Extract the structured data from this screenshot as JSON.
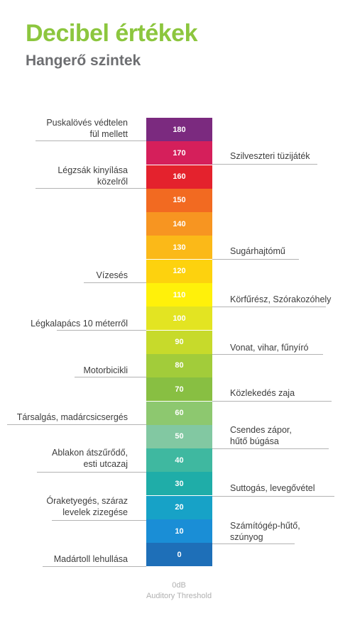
{
  "header": {
    "title": "Decibel értékek",
    "subtitle": "Hangerő szintek"
  },
  "scale": {
    "levels": [
      "180",
      "170",
      "160",
      "150",
      "140",
      "130",
      "120",
      "110",
      "100",
      "90",
      "80",
      "70",
      "60",
      "50",
      "40",
      "30",
      "20",
      "10",
      "0"
    ],
    "colors": [
      "#7b2a7f",
      "#d51f5b",
      "#e4222d",
      "#f26a21",
      "#f79521",
      "#fbb918",
      "#fdd20e",
      "#fff10a",
      "#e3e422",
      "#c7da2b",
      "#a2cc3a",
      "#88bf42",
      "#8dc86f",
      "#82c8a2",
      "#3fb8a0",
      "#1fada8",
      "#17a2c7",
      "#1a8ed6",
      "#1e6fb8"
    ]
  },
  "labels": {
    "left": [
      {
        "text": "Puskalövés védtelen\nfül mellett"
      },
      {
        "text": "Légzsák kinyílása\nközelről"
      },
      {
        "text": "Vízesés"
      },
      {
        "text": "Légkalapács 10 méterről"
      },
      {
        "text": "Motorbicikli"
      },
      {
        "text": "Társalgás, madárcsicsergés"
      },
      {
        "text": "Ablakon átszűrődő,\nesti utcazaj"
      },
      {
        "text": "Óraketyegés, száraz\nlevelek zizegése"
      },
      {
        "text": "Madártoll lehullása"
      }
    ],
    "right": [
      {
        "text": "Szilveszteri tüzijáték"
      },
      {
        "text": "Sugárhajtómű"
      },
      {
        "text": "Körfűrész, Szórakozóhely"
      },
      {
        "text": "Vonat, vihar, fűnyíró"
      },
      {
        "text": "Közlekedés zaja"
      },
      {
        "text": "Csendes zápor,\nhűtő búgása"
      },
      {
        "text": "Suttogás, levegővétel"
      },
      {
        "text": "Számítógép-hűtő,\nszúnyog"
      }
    ]
  },
  "threshold": {
    "line1": "0dB",
    "line2": "Auditory Threshold"
  }
}
